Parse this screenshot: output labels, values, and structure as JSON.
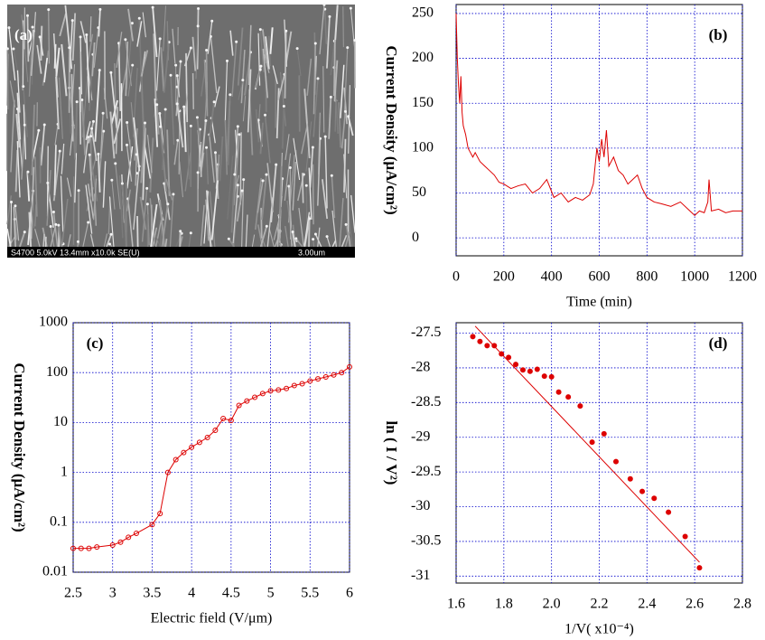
{
  "image_panel": {
    "label": "(a)",
    "caption": "S4700 5.0kV 13.4mm x10.0k SE(U)",
    "scale": "3.00um"
  },
  "chart_data": [
    {
      "type": "line",
      "label": "(b)",
      "x_label": "Time (min)",
      "y_label": "Current Density (μA/cm²)",
      "color": "#dd0000",
      "x": [
        0,
        5,
        10,
        15,
        20,
        25,
        30,
        40,
        50,
        60,
        70,
        80,
        100,
        120,
        140,
        160,
        180,
        200,
        230,
        260,
        290,
        320,
        350,
        380,
        410,
        440,
        470,
        500,
        530,
        560,
        575,
        590,
        600,
        610,
        620,
        630,
        640,
        660,
        680,
        700,
        720,
        740,
        760,
        780,
        800,
        830,
        860,
        900,
        940,
        980,
        1000,
        1020,
        1040,
        1055,
        1060,
        1070,
        1100,
        1130,
        1160,
        1200
      ],
      "values": [
        250,
        200,
        170,
        150,
        180,
        140,
        125,
        115,
        100,
        95,
        90,
        95,
        85,
        80,
        75,
        70,
        62,
        60,
        55,
        58,
        60,
        50,
        55,
        65,
        45,
        50,
        40,
        45,
        42,
        48,
        60,
        100,
        85,
        110,
        90,
        120,
        80,
        90,
        75,
        70,
        60,
        65,
        70,
        55,
        45,
        40,
        38,
        35,
        40,
        30,
        25,
        30,
        28,
        40,
        65,
        30,
        32,
        28,
        30,
        30
      ],
      "xlim": [
        0,
        1200
      ],
      "xticks": [
        0,
        200,
        400,
        600,
        800,
        1000,
        1200
      ],
      "ylim": [
        -20,
        260
      ],
      "yticks": [
        0,
        50,
        100,
        150,
        200,
        250
      ],
      "grid": true,
      "log_y": false
    },
    {
      "type": "line",
      "label": "(c)",
      "x_label": "Electric field (V/μm)",
      "y_label": "Current Density (μA/cm²)",
      "color": "#dd0000",
      "markers": true,
      "x": [
        2.5,
        2.6,
        2.7,
        2.8,
        3.0,
        3.1,
        3.2,
        3.3,
        3.5,
        3.6,
        3.7,
        3.8,
        3.9,
        4.0,
        4.1,
        4.2,
        4.3,
        4.4,
        4.5,
        4.6,
        4.7,
        4.8,
        4.9,
        5.0,
        5.1,
        5.2,
        5.3,
        5.4,
        5.5,
        5.6,
        5.7,
        5.8,
        5.9,
        6.0
      ],
      "values": [
        0.03,
        0.03,
        0.03,
        0.032,
        0.035,
        0.04,
        0.05,
        0.06,
        0.09,
        0.15,
        1,
        1.8,
        2.5,
        3.2,
        4,
        5,
        7,
        12,
        11,
        22,
        27,
        32,
        38,
        43,
        45,
        48,
        55,
        60,
        68,
        75,
        82,
        90,
        100,
        130
      ],
      "xlim": [
        2.5,
        6
      ],
      "xticks": [
        2.5,
        3,
        3.5,
        4,
        4.5,
        5,
        5.5,
        6
      ],
      "ylim": [
        0.01,
        1000
      ],
      "yticks": [
        0.01,
        0.1,
        1,
        10,
        100,
        1000
      ],
      "grid": true,
      "log_y": true
    },
    {
      "type": "scatter",
      "label": "(d)",
      "x_label": "1/V( x10⁻⁴)",
      "y_label": "ln ( I / V²)",
      "color": "#dd0000",
      "x": [
        1.67,
        1.7,
        1.73,
        1.76,
        1.79,
        1.82,
        1.85,
        1.88,
        1.91,
        1.94,
        1.97,
        2.0,
        2.03,
        2.07,
        2.12,
        2.17,
        2.22,
        2.27,
        2.33,
        2.38,
        2.43,
        2.49,
        2.56,
        2.62
      ],
      "values": [
        -27.55,
        -27.62,
        -27.68,
        -27.68,
        -27.8,
        -27.85,
        -27.95,
        -28.03,
        -28.05,
        -28.02,
        -28.12,
        -28.13,
        -28.35,
        -28.42,
        -28.55,
        -29.07,
        -28.95,
        -29.35,
        -29.6,
        -29.78,
        -29.88,
        -30.08,
        -30.43,
        -30.88
      ],
      "fit_x": [
        1.68,
        2.62
      ],
      "fit_values": [
        -27.4,
        -30.8
      ],
      "xlim": [
        1.6,
        2.8
      ],
      "xticks": [
        1.6,
        1.8,
        {
          "value": 2,
          "label": "2.0"
        },
        2.2,
        2.4,
        2.6,
        2.8
      ],
      "ylim": [
        -31.1,
        -27.35
      ],
      "yticks": [
        -27.5,
        -28,
        -28.5,
        -29,
        -29.5,
        -30,
        -30.5,
        -31
      ],
      "grid": true,
      "log_y": false
    }
  ]
}
